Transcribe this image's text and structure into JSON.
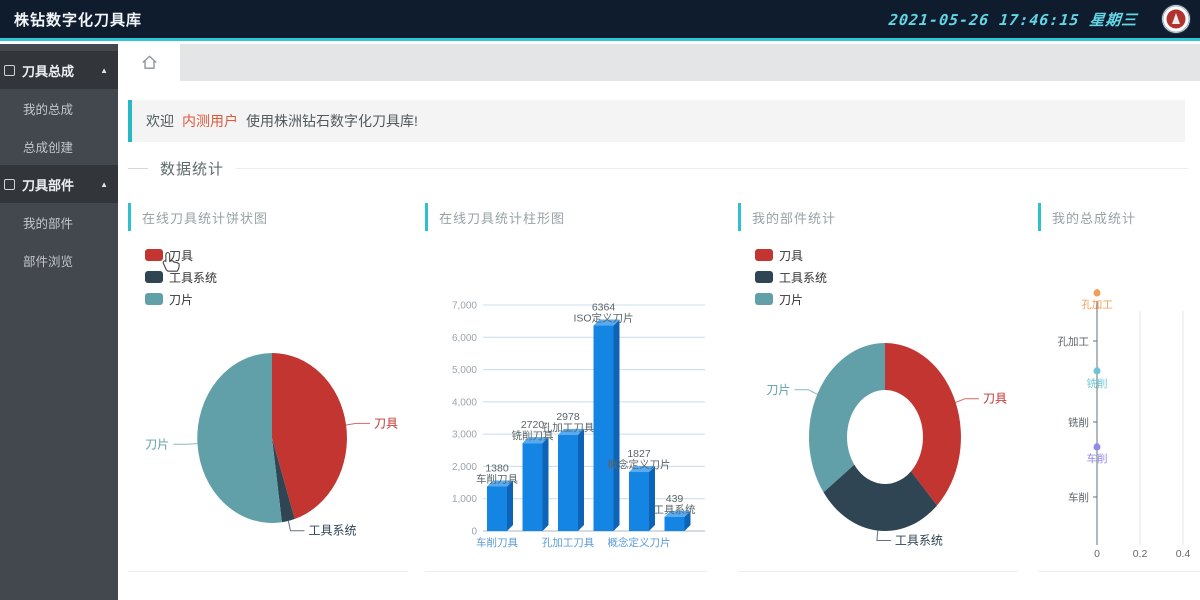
{
  "header": {
    "title": "株钻数字化刀具库",
    "datetime": "2021-05-26 17:46:15 星期三"
  },
  "sidebar": {
    "groups": [
      {
        "label": "刀具总成",
        "icon": "assembly-icon",
        "expanded": true,
        "items": [
          {
            "label": "我的总成"
          },
          {
            "label": "总成创建"
          }
        ]
      },
      {
        "label": "刀具部件",
        "icon": "component-icon",
        "expanded": true,
        "items": [
          {
            "label": "我的部件"
          },
          {
            "label": "部件浏览"
          }
        ]
      }
    ]
  },
  "welcome": {
    "prefix": "欢迎",
    "user": "内测用户",
    "suffix": "使用株洲钻石数字化刀具库!"
  },
  "section": {
    "title": "数据统计"
  },
  "colors": {
    "accent_teal": "#2fc0cd",
    "header_bg": "#0e1c2e",
    "series_red": "#c23531",
    "series_dark": "#2f4554",
    "series_teal": "#61a0a8",
    "bar_blue": "#1585e4",
    "highlight_orange": "#e0593c"
  },
  "chart_data": [
    {
      "type": "pie",
      "title": "在线刀具统计饼状图",
      "legend": [
        "刀具",
        "工具系统",
        "刀片"
      ],
      "legend_position": "top-left",
      "series": [
        {
          "name": "刀具",
          "percent": 45.1,
          "color": "#c23531"
        },
        {
          "name": "工具系统",
          "percent": 2.8,
          "color": "#2f4554"
        },
        {
          "name": "刀片",
          "percent": 52.1,
          "color": "#61a0a8"
        }
      ]
    },
    {
      "type": "bar",
      "title": "在线刀具统计柱形图",
      "categories": [
        "车削刀具",
        "铣削刀具",
        "孔加工刀具",
        "ISO定义刀片",
        "概念定义刀片",
        "工具系统"
      ],
      "values": [
        1380,
        2720,
        2978,
        6364,
        1827,
        439
      ],
      "ylim": [
        0,
        7000
      ],
      "ytick_labels": [
        "0",
        "1,000",
        "2,000",
        "3,000",
        "4,000",
        "5,000",
        "6,000",
        "7,000"
      ],
      "xtick_labels_visible": [
        "车削刀具",
        "孔加工刀具",
        "概念定义刀片"
      ],
      "grid": true,
      "bar_color": "#1585e4"
    },
    {
      "type": "donut",
      "title": "我的部件统计",
      "legend": [
        "刀具",
        "工具系统",
        "刀片"
      ],
      "legend_position": "top-left",
      "series": [
        {
          "name": "刀具",
          "percent": 38,
          "color": "#c23531"
        },
        {
          "name": "工具系统",
          "percent": 27,
          "color": "#2f4554"
        },
        {
          "name": "刀片",
          "percent": 35,
          "color": "#61a0a8"
        }
      ]
    },
    {
      "type": "hbar",
      "title": "我的总成统计",
      "categories": [
        "孔加工",
        "铣削",
        "车削"
      ],
      "values": [
        0,
        0,
        0
      ],
      "value_labels": [
        {
          "value": "0",
          "name": "孔加工",
          "color": "#ef9f56"
        },
        {
          "value": "0",
          "name": "铣削",
          "color": "#6cc6d6"
        },
        {
          "value": "0",
          "name": "车削",
          "color": "#9089ef"
        }
      ],
      "xtick_labels": [
        "0",
        "0.2",
        "0.4"
      ],
      "xlim": [
        0,
        1
      ],
      "grid": true
    }
  ]
}
